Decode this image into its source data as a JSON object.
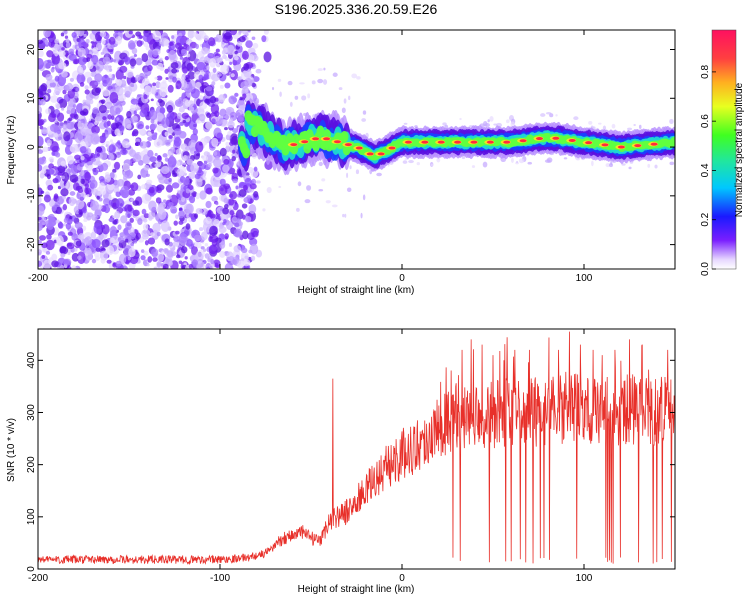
{
  "title": "S196.2025.336.20.59.E26",
  "colors": {
    "line": "#e8302a",
    "frame": "#000000"
  },
  "chart_data": [
    {
      "type": "heatmap",
      "xlabel": "Height of straight line (km)",
      "ylabel": "Frequency (Hz)",
      "xlim": [
        -200,
        150
      ],
      "ylim": [
        -25,
        24
      ],
      "xticks": [
        -200,
        -100,
        0,
        100
      ],
      "xtick_labels": [
        "-200",
        "-100",
        "0",
        "100"
      ],
      "yticks": [
        20,
        10,
        0,
        -10,
        -20
      ],
      "ytick_labels": [
        "20",
        "10",
        "0",
        "-10",
        "-20"
      ],
      "colorbar": {
        "label": "Normalized spectral amplitude",
        "ticks": [
          0.0,
          0.2,
          0.4,
          0.6,
          0.8
        ],
        "tick_labels": [
          "0.0",
          "0.2",
          "0.4",
          "0.6",
          "0.8"
        ],
        "range": [
          0,
          0.97
        ]
      },
      "description_ridge": [
        [
          -85,
          5
        ],
        [
          -75,
          3
        ],
        [
          -65,
          0
        ],
        [
          -55,
          1
        ],
        [
          -45,
          2
        ],
        [
          -35,
          1
        ],
        [
          -25,
          0
        ],
        [
          -15,
          -2
        ],
        [
          -5,
          0
        ],
        [
          0,
          1
        ],
        [
          20,
          1
        ],
        [
          40,
          1
        ],
        [
          60,
          1
        ],
        [
          80,
          2
        ],
        [
          100,
          1
        ],
        [
          120,
          0
        ],
        [
          150,
          1
        ]
      ]
    },
    {
      "type": "line",
      "xlabel": "Height of straight line (km)",
      "ylabel": "SNR (10 * v/v)",
      "xlim": [
        -200,
        150
      ],
      "ylim": [
        0,
        460
      ],
      "xticks": [
        -200,
        -100,
        0,
        100
      ],
      "xtick_labels": [
        "-200",
        "-100",
        "0",
        "100"
      ],
      "yticks": [
        0,
        100,
        200,
        300,
        400
      ],
      "ytick_labels": [
        "0",
        "100",
        "200",
        "300",
        "400"
      ],
      "series": [
        {
          "name": "SNR",
          "trend": [
            [
              -200,
              18
            ],
            [
              -100,
              18
            ],
            [
              -85,
              22
            ],
            [
              -75,
              30
            ],
            [
              -65,
              60
            ],
            [
              -55,
              70
            ],
            [
              -45,
              50
            ],
            [
              -40,
              95
            ],
            [
              -30,
              110
            ],
            [
              -20,
              150
            ],
            [
              -10,
              190
            ],
            [
              0,
              220
            ],
            [
              10,
              240
            ],
            [
              20,
              270
            ],
            [
              30,
              295
            ],
            [
              40,
              300
            ],
            [
              50,
              295
            ],
            [
              60,
              300
            ],
            [
              70,
              300
            ],
            [
              80,
              305
            ],
            [
              90,
              310
            ],
            [
              100,
              305
            ],
            [
              110,
              300
            ],
            [
              120,
              305
            ],
            [
              130,
              305
            ],
            [
              140,
              300
            ],
            [
              150,
              305
            ]
          ],
          "spikes": [
            [
              -38,
              365
            ],
            [
              27,
              410
            ],
            [
              33,
              420
            ],
            [
              38,
              440
            ],
            [
              44,
              430
            ],
            [
              50,
              410
            ],
            [
              56,
              400
            ],
            [
              62,
              420
            ],
            [
              70,
              420
            ],
            [
              78,
              415
            ],
            [
              86,
              420
            ],
            [
              92,
              455
            ],
            [
              98,
              430
            ],
            [
              105,
              420
            ],
            [
              110,
              410
            ],
            [
              117,
              420
            ],
            [
              125,
              440
            ],
            [
              132,
              430
            ],
            [
              140,
              440
            ],
            [
              146,
              420
            ]
          ],
          "dropouts": [
            28,
            32,
            48,
            57,
            60,
            65,
            68,
            72,
            76,
            78,
            81,
            96,
            112,
            113,
            114,
            115,
            116,
            120,
            130,
            138,
            140,
            143,
            148
          ]
        }
      ]
    }
  ]
}
